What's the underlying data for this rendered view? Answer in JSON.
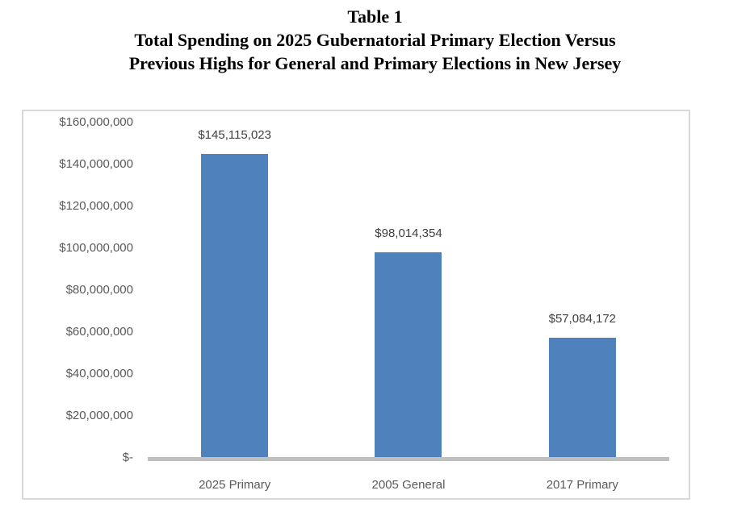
{
  "title": {
    "line1": "Table 1",
    "line2": "Total Spending on 2025 Gubernatorial Primary Election Versus",
    "line3": "Previous Highs for General and Primary Elections in New Jersey"
  },
  "chart_data": {
    "type": "bar",
    "title": "Total Spending on 2025 Gubernatorial Primary Election Versus Previous Highs for General and Primary Elections in New Jersey",
    "categories": [
      "2025 Primary",
      "2005 General",
      "2017 Primary"
    ],
    "values": [
      145115023,
      98014354,
      57084172
    ],
    "data_labels": [
      "$145,115,023",
      "$98,014,354",
      "$57,084,172"
    ],
    "xlabel": "",
    "ylabel": "",
    "ylim": [
      0,
      160000000
    ],
    "y_tick_interval": 20000000,
    "y_ticks_top_to_bottom": [
      "$160,000,000",
      "$140,000,000",
      "$120,000,000",
      "$100,000,000",
      "$80,000,000",
      "$60,000,000",
      "$40,000,000",
      "$20,000,000",
      "$-"
    ],
    "grid": false,
    "legend_position": "none",
    "bar_color": "#4f81bd",
    "axis_line_color": "#bfbfbf",
    "frame_border_color": "#d9d9d9",
    "tick_text_color": "#595959",
    "data_label_color": "#404040",
    "title_color": "#000000"
  }
}
